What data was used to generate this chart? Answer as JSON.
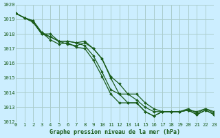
{
  "title": "Graphe pression niveau de la mer (hPa)",
  "background_color": "#cceeff",
  "grid_color": "#aacccc",
  "line_color": "#1a5c1a",
  "marker_color": "#1a5c1a",
  "xlim": [
    0,
    23
  ],
  "ylim": [
    1012,
    1020
  ],
  "yticks": [
    1012,
    1013,
    1014,
    1015,
    1016,
    1017,
    1018,
    1019,
    1020
  ],
  "xticks": [
    0,
    1,
    2,
    3,
    4,
    5,
    6,
    7,
    8,
    9,
    10,
    11,
    12,
    13,
    14,
    15,
    16,
    17,
    18,
    19,
    20,
    21,
    22,
    23
  ],
  "series": [
    [
      1019.4,
      1019.1,
      1018.8,
      1018.0,
      1017.8,
      1017.5,
      1017.5,
      1017.4,
      1017.5,
      1017.0,
      1016.3,
      1015.0,
      1013.9,
      1013.3,
      1013.3,
      1012.7,
      1012.4,
      1012.7,
      1012.7,
      1012.7,
      1012.8,
      1012.5,
      1012.8,
      1012.5
    ],
    [
      1019.4,
      1019.1,
      1018.8,
      1018.0,
      1018.0,
      1017.5,
      1017.3,
      1017.2,
      1017.4,
      1017.0,
      1016.3,
      1015.1,
      1014.6,
      1013.9,
      1013.9,
      1013.3,
      1012.9,
      1012.7,
      1012.7,
      1012.7,
      1012.8,
      1012.7,
      1012.9,
      1012.7
    ],
    [
      1019.4,
      1019.1,
      1018.9,
      1018.1,
      1017.6,
      1017.3,
      1017.4,
      1017.1,
      1017.0,
      1016.2,
      1015.1,
      1013.9,
      1013.3,
      1013.3,
      1013.3,
      1012.7,
      1012.4,
      1012.7,
      1012.7,
      1012.7,
      1012.8,
      1012.5,
      1012.8,
      1012.5
    ],
    [
      1019.4,
      1019.1,
      1018.9,
      1018.1,
      1017.8,
      1017.5,
      1017.5,
      1017.4,
      1017.2,
      1016.5,
      1015.4,
      1014.2,
      1013.9,
      1013.9,
      1013.5,
      1013.0,
      1012.7,
      1012.7,
      1012.7,
      1012.7,
      1012.9,
      1012.6,
      1012.9,
      1012.6
    ]
  ]
}
